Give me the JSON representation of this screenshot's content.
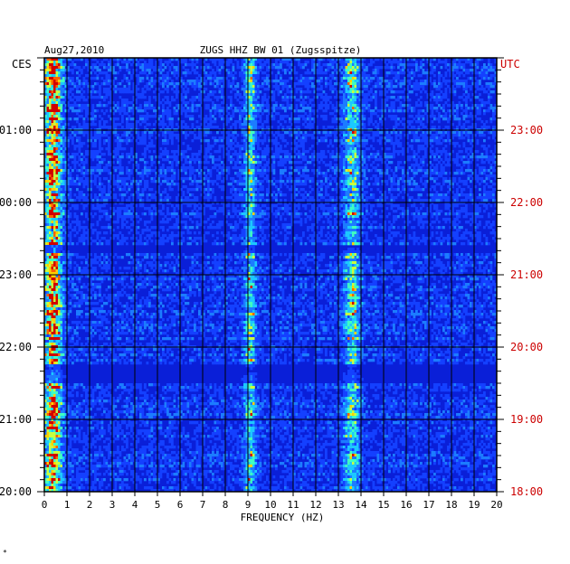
{
  "chart_data": {
    "type": "heatmap",
    "title": "ZUGS HHZ BW 01 (Zugsspitze)",
    "date": "Aug27,2010",
    "xlabel": "FREQUENCY (HZ)",
    "xlim": [
      0,
      20
    ],
    "x_ticks": [
      0,
      1,
      2,
      3,
      4,
      5,
      6,
      7,
      8,
      9,
      10,
      11,
      12,
      13,
      14,
      15,
      16,
      17,
      18,
      19,
      20
    ],
    "left_axis": {
      "label": "CES",
      "ticks": [
        {
          "hour": 25,
          "label": "01:00"
        },
        {
          "hour": 24,
          "label": "00:00"
        },
        {
          "hour": 23,
          "label": "23:00"
        },
        {
          "hour": 22,
          "label": "22:00"
        },
        {
          "hour": 21,
          "label": "21:00"
        },
        {
          "hour": 20,
          "label": "20:00"
        }
      ],
      "range_hours": [
        20,
        26
      ]
    },
    "right_axis": {
      "label": "UTC",
      "ticks": [
        {
          "hour": 23,
          "label": "23:00"
        },
        {
          "hour": 22,
          "label": "22:00"
        },
        {
          "hour": 21,
          "label": "21:00"
        },
        {
          "hour": 20,
          "label": "20:00"
        },
        {
          "hour": 19,
          "label": "19:00"
        },
        {
          "hour": 18,
          "label": "18:00"
        }
      ],
      "range_hours": [
        18,
        24
      ]
    },
    "colors": {
      "background": "#0a1fd8",
      "grid": "#000000",
      "utc_labels": "#cc0000",
      "text": "#000000"
    },
    "energy_bands": [
      {
        "freq_center": 0.4,
        "width": 0.35,
        "strength": 0.95
      },
      {
        "freq_center": 9.1,
        "width": 0.25,
        "strength": 0.6
      },
      {
        "freq_center": 13.6,
        "width": 0.35,
        "strength": 0.6
      }
    ],
    "quiet_periods": [
      {
        "from_hour": 21.5,
        "to_hour": 21.75
      },
      {
        "from_hour": 23.3,
        "to_hour": 23.4
      }
    ]
  },
  "footer_mark": "*"
}
